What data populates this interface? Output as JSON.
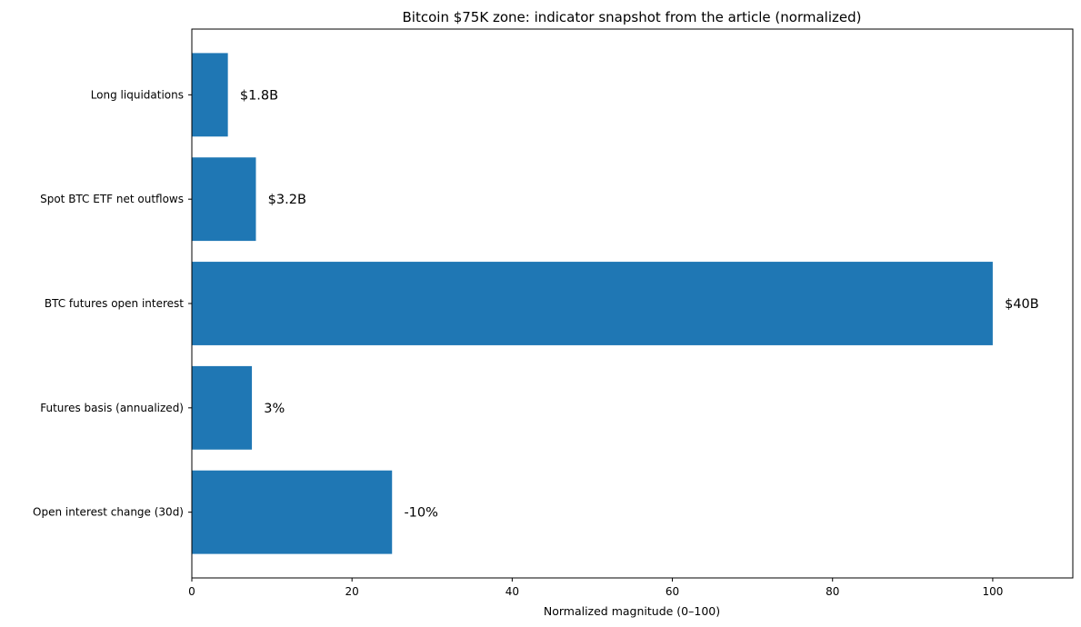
{
  "chart_data": {
    "type": "bar",
    "orientation": "horizontal",
    "title": "Bitcoin $75K zone: indicator snapshot from the article (normalized)",
    "xlabel": "Normalized magnitude (0–100)",
    "ylabel": "",
    "xlim": [
      0,
      110
    ],
    "xticks": [
      0,
      20,
      40,
      60,
      80,
      100
    ],
    "grid": false,
    "bar_color": "#1f77b4",
    "categories": [
      "Open interest change (30d)",
      "Futures basis (annualized)",
      "BTC futures open interest",
      "Spot BTC ETF net outflows",
      "Long liquidations"
    ],
    "values": [
      25,
      7.5,
      100,
      8,
      4.5
    ],
    "data_labels": [
      "-10%",
      "3%",
      "$40B",
      "$3.2B",
      "$1.8B"
    ]
  }
}
